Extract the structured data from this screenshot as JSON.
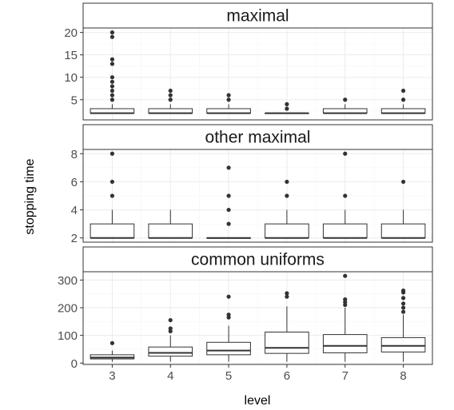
{
  "chart_data": {
    "type": "boxplot",
    "xlabel": "level",
    "ylabel": "stopping time",
    "categories": [
      "3",
      "4",
      "5",
      "6",
      "7",
      "8"
    ],
    "panels": [
      {
        "title": "maximal",
        "ylim": [
          0.5,
          21
        ],
        "yticks": [
          5,
          10,
          15,
          20
        ],
        "boxes": [
          {
            "q1": 2,
            "median": 2,
            "q3": 3,
            "lo": 2,
            "hi": 4,
            "outliers": [
              5,
              6,
              7,
              8,
              9,
              10,
              13,
              14,
              19,
              20
            ]
          },
          {
            "q1": 2,
            "median": 2,
            "q3": 3,
            "lo": 2,
            "hi": 4,
            "outliers": [
              5,
              6,
              7
            ]
          },
          {
            "q1": 2,
            "median": 2,
            "q3": 3,
            "lo": 2,
            "hi": 4,
            "outliers": [
              5,
              6
            ]
          },
          {
            "q1": 2,
            "median": 2,
            "q3": 2,
            "lo": 2,
            "hi": 2,
            "outliers": [
              3,
              4
            ]
          },
          {
            "q1": 2,
            "median": 2,
            "q3": 3,
            "lo": 2,
            "hi": 4,
            "outliers": [
              5
            ]
          },
          {
            "q1": 2,
            "median": 2,
            "q3": 3,
            "lo": 2,
            "hi": 4,
            "outliers": [
              5,
              7
            ]
          }
        ]
      },
      {
        "title": "other maximal",
        "ylim": [
          1.7,
          8.3
        ],
        "yticks": [
          2,
          4,
          6,
          8
        ],
        "boxes": [
          {
            "q1": 2,
            "median": 2,
            "q3": 3,
            "lo": 2,
            "hi": 4,
            "outliers": [
              5,
              6,
              8
            ]
          },
          {
            "q1": 2,
            "median": 2,
            "q3": 3,
            "lo": 2,
            "hi": 4,
            "outliers": []
          },
          {
            "q1": 2,
            "median": 2,
            "q3": 2,
            "lo": 2,
            "hi": 2,
            "outliers": [
              3,
              4,
              5,
              7
            ]
          },
          {
            "q1": 2,
            "median": 2,
            "q3": 3,
            "lo": 2,
            "hi": 4,
            "outliers": [
              5,
              6
            ]
          },
          {
            "q1": 2,
            "median": 2,
            "q3": 3,
            "lo": 2,
            "hi": 4,
            "outliers": [
              5,
              8
            ]
          },
          {
            "q1": 2,
            "median": 2,
            "q3": 3,
            "lo": 2,
            "hi": 4,
            "outliers": [
              6
            ]
          }
        ]
      },
      {
        "title": "common uniforms",
        "ylim": [
          -5,
          330
        ],
        "yticks": [
          0,
          100,
          200,
          300
        ],
        "boxes": [
          {
            "q1": 15,
            "median": 20,
            "q3": 30,
            "lo": 5,
            "hi": 45,
            "outliers": [
              72
            ]
          },
          {
            "q1": 25,
            "median": 37,
            "q3": 58,
            "lo": 5,
            "hi": 100,
            "outliers": [
              115,
              125,
              155
            ]
          },
          {
            "q1": 30,
            "median": 45,
            "q3": 75,
            "lo": 5,
            "hi": 135,
            "outliers": [
              165,
              175,
              240
            ]
          },
          {
            "q1": 35,
            "median": 55,
            "q3": 112,
            "lo": 5,
            "hi": 205,
            "outliers": [
              240,
              252
            ]
          },
          {
            "q1": 37,
            "median": 62,
            "q3": 103,
            "lo": 5,
            "hi": 200,
            "outliers": [
              210,
              220,
              230,
              315
            ]
          },
          {
            "q1": 40,
            "median": 62,
            "q3": 92,
            "lo": 5,
            "hi": 175,
            "outliers": [
              185,
              200,
              215,
              235,
              255,
              262
            ]
          }
        ]
      }
    ]
  }
}
